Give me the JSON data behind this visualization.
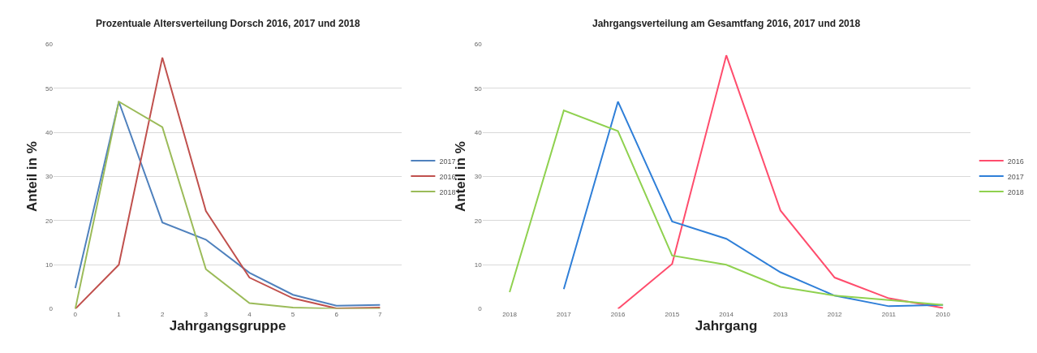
{
  "chart_data": [
    {
      "type": "line",
      "title": "Prozentuale Altersverteilung Dorsch 2016, 2017 und 2018",
      "xlabel": "Jahrgangsgruppe",
      "ylabel": "Anteil in %",
      "categories": [
        "0",
        "1",
        "2",
        "3",
        "4",
        "5",
        "6",
        "7"
      ],
      "ylim": [
        0,
        60
      ],
      "yticks": [
        0,
        10,
        20,
        30,
        40,
        50,
        60
      ],
      "grid": "y",
      "legend": "right",
      "marker": "none",
      "line_style": "solid",
      "series": [
        {
          "name": "2017",
          "color": "#4f81bd",
          "values": [
            4.7,
            47,
            19.6,
            15.7,
            8.2,
            3.2,
            0.7,
            0.9
          ]
        },
        {
          "name": "2016",
          "color": "#c0504d",
          "values": [
            0,
            10,
            57,
            22.2,
            7.1,
            2.4,
            0.1,
            0.3
          ]
        },
        {
          "name": "2018",
          "color": "#9bbb59",
          "values": [
            0,
            47,
            41.2,
            9,
            1.3,
            0.3,
            0,
            0
          ]
        }
      ]
    },
    {
      "type": "line",
      "title": "Jahrgangsverteilung am Gesamtfang 2016, 2017 und 2018",
      "xlabel": "Jahrgang",
      "ylabel": "Anteil in %",
      "categories": [
        "2018",
        "2017",
        "2016",
        "2015",
        "2014",
        "2013",
        "2012",
        "2011",
        "2010"
      ],
      "ylim": [
        0,
        60
      ],
      "yticks": [
        0,
        10,
        20,
        30,
        40,
        50,
        60
      ],
      "grid": "y",
      "legend": "right",
      "marker": "none",
      "line_style": "solid",
      "series": [
        {
          "name": "2016",
          "color": "#ff4d6d",
          "values": [
            null,
            null,
            0,
            10.2,
            57.5,
            22.3,
            7.1,
            2.4,
            0.2
          ]
        },
        {
          "name": "2017",
          "color": "#2f7fd8",
          "values": [
            null,
            4.5,
            47,
            19.8,
            15.9,
            8.3,
            3,
            0.6,
            0.9
          ]
        },
        {
          "name": "2018",
          "color": "#8fd14f",
          "values": [
            3.8,
            45,
            40.3,
            12.1,
            10,
            5,
            3,
            2,
            0.9
          ]
        }
      ]
    }
  ]
}
